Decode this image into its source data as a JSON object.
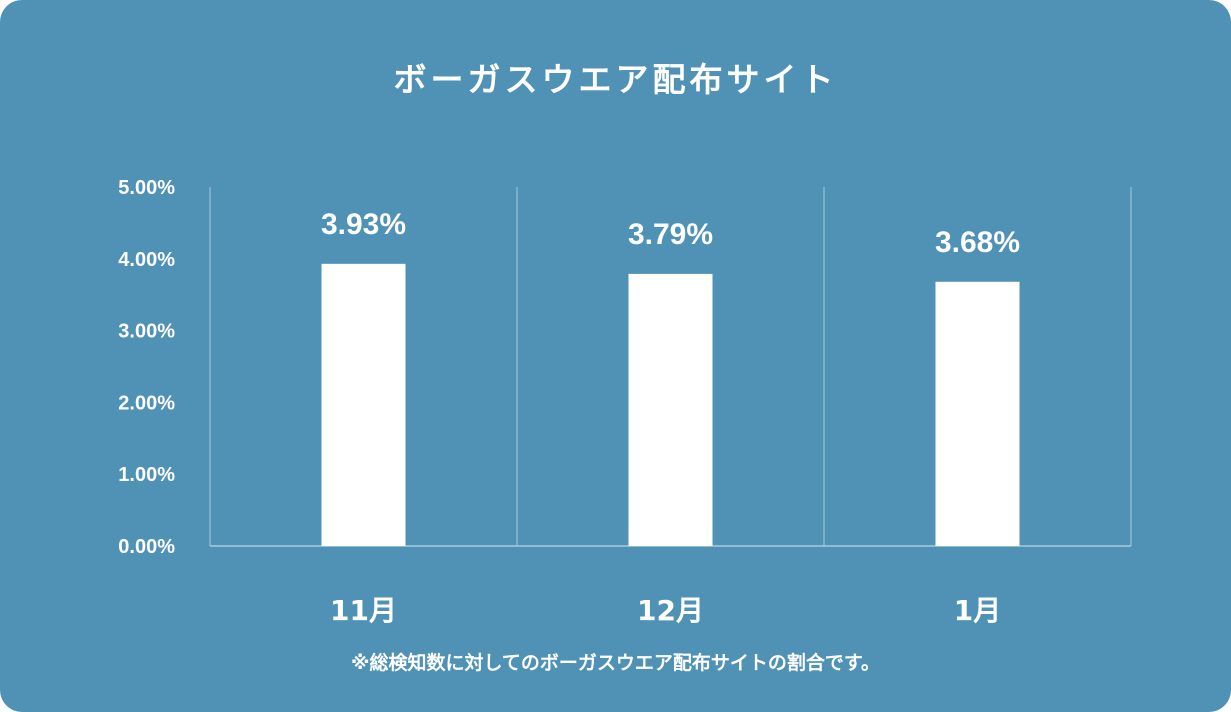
{
  "chart_data": {
    "type": "bar",
    "title": "ボーガスウエア配布サイト",
    "categories": [
      "11月",
      "12月",
      "1月"
    ],
    "values": [
      3.93,
      3.79,
      3.68
    ],
    "data_labels": [
      "3.93%",
      "3.79%",
      "3.68%"
    ],
    "ylim": [
      0,
      5
    ],
    "y_ticks": [
      0,
      1,
      2,
      3,
      4,
      5
    ],
    "y_tick_labels": [
      "0.00%",
      "1.00%",
      "2.00%",
      "3.00%",
      "4.00%",
      "5.00%"
    ],
    "grid": "vertical separators between categories",
    "legend": "none",
    "note": "※総検知数に対してのボーガスウエア配布サイトの割合です。"
  },
  "colors": {
    "background": "#4f92b5",
    "bar": "#ffffff",
    "text": "#ffffff",
    "gridline": "#a9c9dc"
  }
}
